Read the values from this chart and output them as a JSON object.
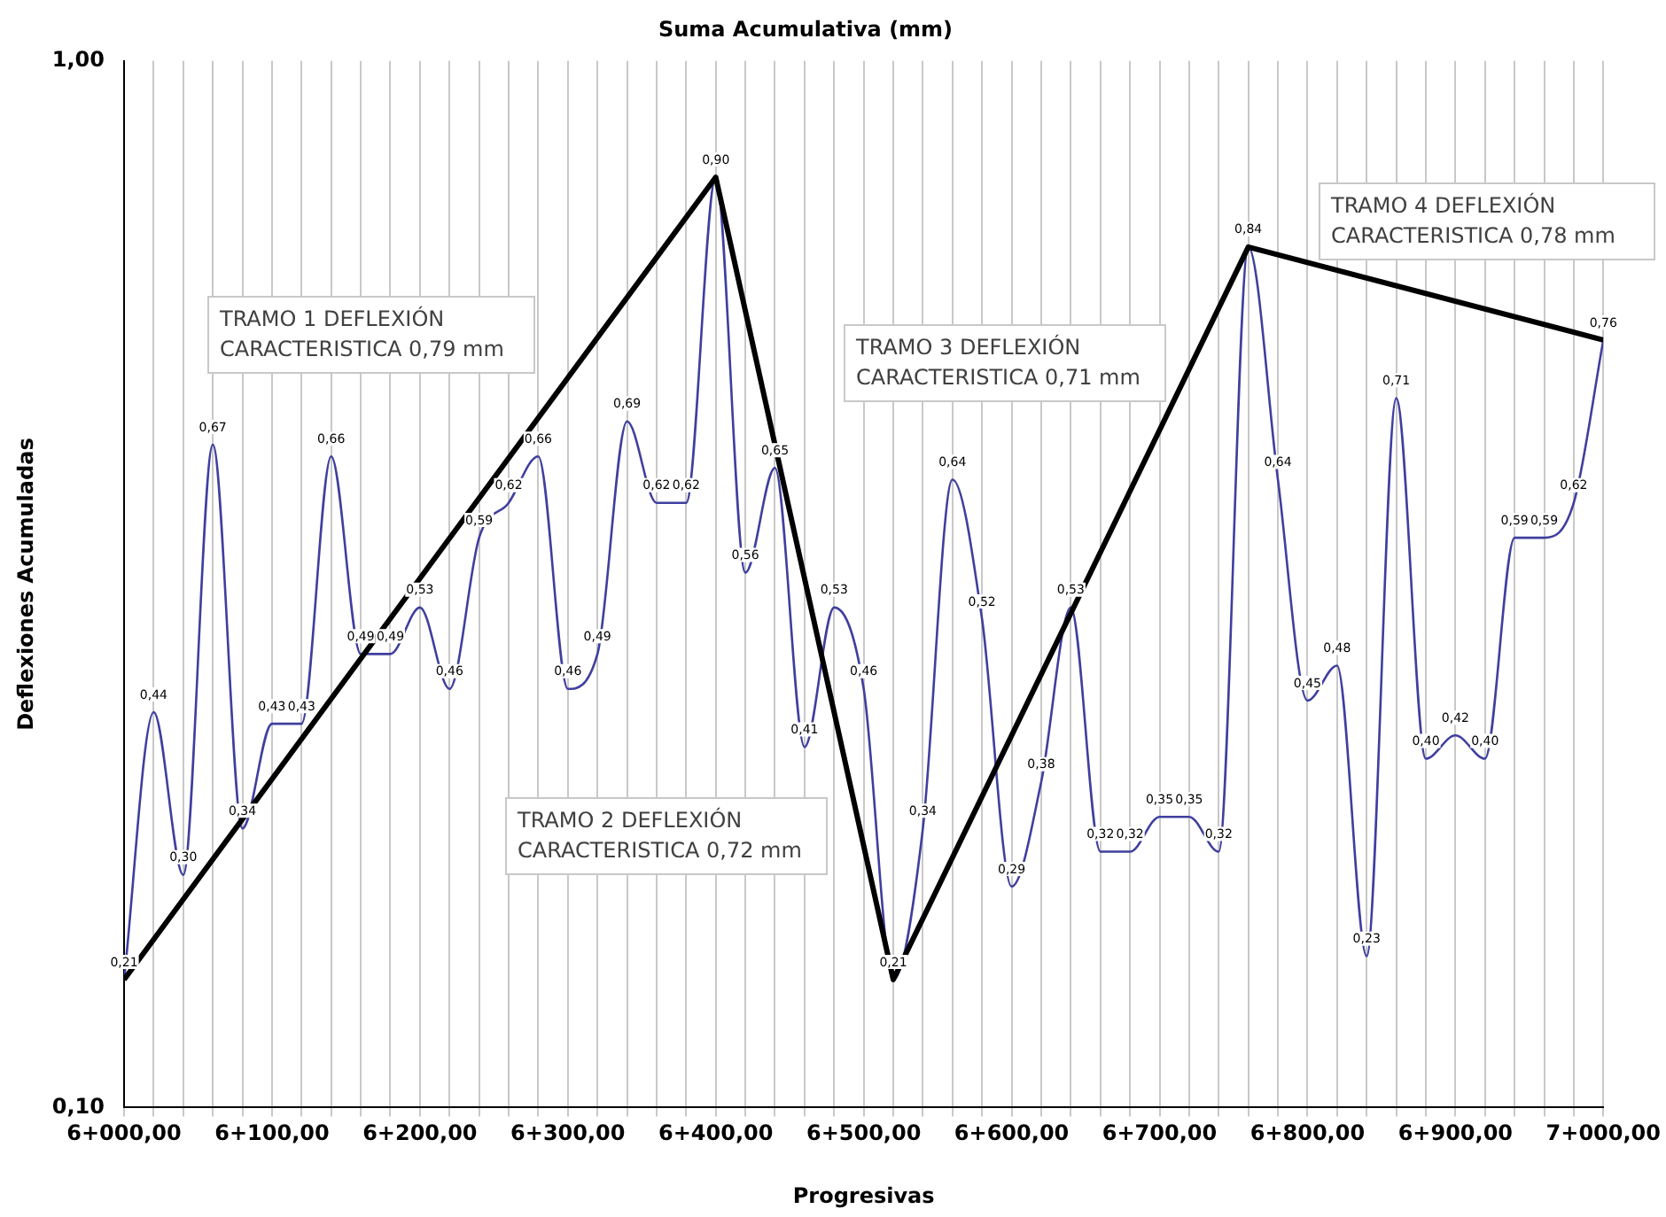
{
  "chart_data": {
    "type": "line",
    "title": "Suma Acumulativa (mm)",
    "xlabel": "Progresivas",
    "ylabel": "Deflexiones Acumuladas",
    "categories": [
      "6+000,00",
      null,
      null,
      null,
      null,
      "6+100,00",
      null,
      null,
      null,
      null,
      "6+200,00",
      null,
      null,
      null,
      null,
      "6+300,00",
      null,
      null,
      null,
      null,
      "6+400,00",
      null,
      null,
      null,
      null,
      "6+500,00",
      null,
      null,
      null,
      null,
      "6+600,00",
      null,
      null,
      null,
      null,
      "6+700,00",
      null,
      null,
      null,
      null,
      "6+800,00",
      null,
      null,
      null,
      null,
      "6+900,00",
      null,
      null,
      null,
      null,
      "7+000,00"
    ],
    "series": [
      {
        "color": "#3f3f9f",
        "line_style": "solid",
        "values": [
          0.21,
          0.44,
          0.3,
          0.67,
          0.34,
          0.43,
          0.43,
          0.66,
          0.49,
          0.49,
          0.53,
          0.46,
          0.59,
          0.62,
          0.66,
          0.46,
          0.49,
          0.69,
          0.62,
          0.62,
          0.9,
          0.56,
          0.65,
          0.41,
          0.53,
          0.46,
          0.21,
          0.34,
          0.64,
          0.52,
          0.29,
          0.38,
          0.53,
          0.32,
          0.32,
          0.35,
          0.35,
          0.32,
          0.84,
          0.64,
          0.45,
          0.48,
          0.23,
          0.71,
          0.4,
          0.42,
          0.4,
          0.59,
          0.59,
          0.62,
          0.76
        ],
        "value_labels": [
          "0,21",
          "0,44",
          "0,30",
          "0,67",
          "0,34",
          "0,43",
          "0,43",
          "0,66",
          "0,49",
          "0,49",
          "0,53",
          "0,46",
          "0,59",
          "0,62",
          "0,66",
          "0,46",
          "0,49",
          "0,69",
          "0,62",
          "0,62",
          "0,90",
          "0,56",
          "0,65",
          "0,41",
          "0,53",
          "0,46",
          "0,21",
          "0,34",
          "0,64",
          "0,52",
          "0,29",
          "0,38",
          "0,53",
          "0,32",
          "0,32",
          "0,35",
          "0,35",
          "0,32",
          "0,84",
          "0,64",
          "0,45",
          "0,48",
          "0,23",
          "0,71",
          "0,40",
          "0,42",
          "0,40",
          "0,59",
          "0,59",
          "0,62",
          "0,76"
        ]
      },
      {
        "type": "line",
        "color": "#000000",
        "line_style": "solid",
        "values": [
          0.21,
          null,
          null,
          null,
          null,
          null,
          null,
          null,
          null,
          null,
          null,
          null,
          null,
          null,
          null,
          null,
          null,
          null,
          null,
          null,
          0.9,
          null,
          null,
          null,
          null,
          null,
          0.21,
          null,
          null,
          null,
          null,
          null,
          null,
          null,
          null,
          null,
          null,
          null,
          0.84,
          null,
          null,
          null,
          null,
          null,
          null,
          null,
          null,
          null,
          null,
          null,
          0.76
        ]
      }
    ],
    "ylim": [
      0.1,
      1.0
    ],
    "yticks": [
      {
        "value": 0.1,
        "label": "0,10"
      },
      {
        "value": 1.0,
        "label": "1,00"
      }
    ],
    "grid": "x",
    "legend": false,
    "marker": "none",
    "annotations": [
      "TRAMO 1 DEFLEXIÓN CARACTERISTICA 0,79 mm",
      "TRAMO 2 DEFLEXIÓN CARACTERISTICA 0,72 mm",
      "TRAMO 3 DEFLEXIÓN CARACTERISTICA 0,71 mm",
      "TRAMO 4 DEFLEXIÓN CARACTERISTICA 0,78 mm"
    ]
  }
}
